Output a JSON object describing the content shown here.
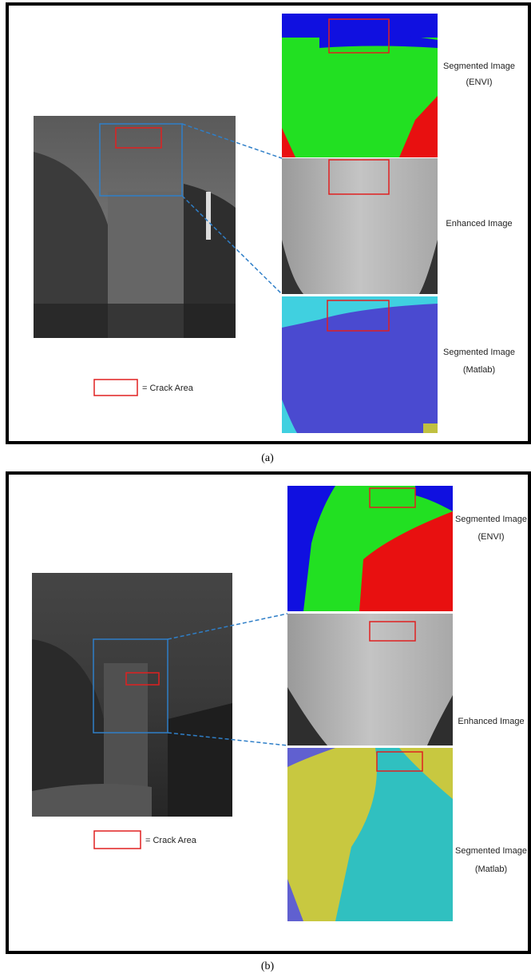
{
  "figures": [
    {
      "caption": "(a)",
      "legend": "= Crack Area",
      "labels": [
        [
          "Segmented Image",
          "(ENVI)"
        ],
        [
          "Enhanced Image"
        ],
        [
          "Segmented Image",
          "(Matlab)"
        ]
      ]
    },
    {
      "caption": "(b)",
      "legend": "= Crack Area",
      "labels": [
        [
          "Segmented Image",
          "(ENVI)"
        ],
        [
          "Enhanced Image"
        ],
        [
          "Segmented Image",
          "(Matlab)"
        ]
      ]
    }
  ]
}
